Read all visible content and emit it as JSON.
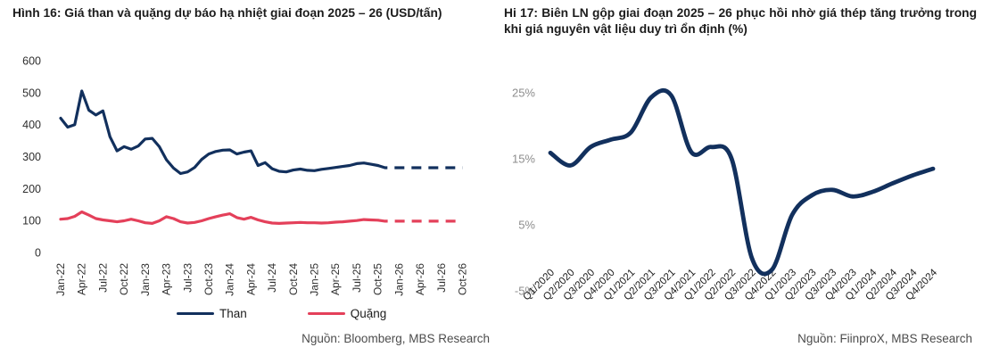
{
  "figures": {
    "left": {
      "title": "Hình 16: Giá than và quặng dự báo hạ nhiệt giai đoạn 2025 – 26 (USD/tấn)",
      "source": "Nguồn: Bloomberg, MBS Research",
      "legend": [
        {
          "label": "Than",
          "color": "#12305d"
        },
        {
          "label": "Quặng",
          "color": "#e4405a"
        }
      ]
    },
    "right": {
      "title": "Hi 17:  Biên LN gộp giai đoạn 2025 – 26 phục hồi nhờ giá thép tăng trưởng trong khi giá nguyên vật liệu duy trì ổn định (%)",
      "source": "Nguồn: FiinproX, MBS Research"
    }
  },
  "chart_data": [
    {
      "type": "line",
      "title": "Giá than và quặng dự báo hạ nhiệt giai đoạn 2025 – 26",
      "ylabel": "USD/tấn",
      "ylim": [
        0,
        600
      ],
      "yticks": [
        0,
        100,
        200,
        300,
        400,
        500,
        600
      ],
      "grid": false,
      "legend_position": "bottom",
      "x_frequency": "monthly",
      "x_tick_labels": [
        "Jan-22",
        "Apr-22",
        "Jul-22",
        "Oct-22",
        "Jan-23",
        "Apr-23",
        "Jul-23",
        "Oct-23",
        "Jan-24",
        "Apr-24",
        "Jul-24",
        "Oct-24",
        "Jan-25",
        "Apr-25",
        "Jul-25",
        "Oct-25",
        "Jan-26",
        "Apr-26",
        "Jul-26",
        "Oct-26"
      ],
      "forecast_start_label": "Oct-25",
      "series": [
        {
          "name": "Than",
          "color": "#12305d",
          "values": [
            420,
            392,
            400,
            505,
            445,
            430,
            443,
            362,
            318,
            331,
            323,
            333,
            355,
            357,
            331,
            290,
            264,
            247,
            252,
            266,
            291,
            308,
            316,
            320,
            321,
            308,
            314,
            318,
            272,
            281,
            262,
            254,
            252,
            258,
            261,
            257,
            256,
            260,
            263,
            266,
            269,
            272,
            278,
            280,
            276,
            272
          ],
          "forecast_values": [
            265,
            265,
            265,
            265,
            265,
            265,
            265,
            265,
            265,
            265,
            265,
            265
          ],
          "forecast_style": "dashed"
        },
        {
          "name": "Quặng",
          "color": "#e4405a",
          "values": [
            104,
            106,
            113,
            127,
            117,
            106,
            102,
            99,
            96,
            99,
            104,
            99,
            93,
            91,
            99,
            112,
            106,
            96,
            92,
            94,
            99,
            106,
            112,
            117,
            121,
            109,
            104,
            110,
            102,
            96,
            92,
            91,
            92,
            93,
            94,
            93,
            93,
            92,
            93,
            95,
            96,
            98,
            100,
            103,
            102,
            101
          ],
          "forecast_values": [
            98,
            98,
            98,
            98,
            98,
            98,
            98,
            98,
            98,
            98,
            98,
            98
          ],
          "forecast_style": "dashed"
        }
      ]
    },
    {
      "type": "line",
      "title": "Biên LN gộp giai đoạn 2025 – 26 phục hồi nhờ giá thép tăng trưởng trong khi giá nguyên vật liệu duy trì ổn định",
      "ylabel": "%",
      "ylim": [
        -5,
        25
      ],
      "yticks": [
        -5,
        5,
        15,
        25
      ],
      "ytick_suffix": "%",
      "grid": false,
      "smooth": true,
      "line_color": "#12305d",
      "categories": [
        "Q1/2020",
        "Q2/2020",
        "Q3/2020",
        "Q4/2020",
        "Q1/2021",
        "Q2/2021",
        "Q3/2021",
        "Q4/2021",
        "Q1/2022",
        "Q2/2022",
        "Q3/2022",
        "Q4/2022",
        "Q1/2023",
        "Q2/2023",
        "Q3/2023",
        "Q4/2023",
        "Q1/2024",
        "Q2/2024",
        "Q3/2024",
        "Q4/2024"
      ],
      "values": [
        15.9,
        14.0,
        16.8,
        17.9,
        19.0,
        24.3,
        24.6,
        16.0,
        16.8,
        15.0,
        0.0,
        -1.8,
        6.5,
        9.5,
        10.3,
        9.3,
        10.0,
        11.3,
        12.5,
        13.5
      ]
    }
  ]
}
